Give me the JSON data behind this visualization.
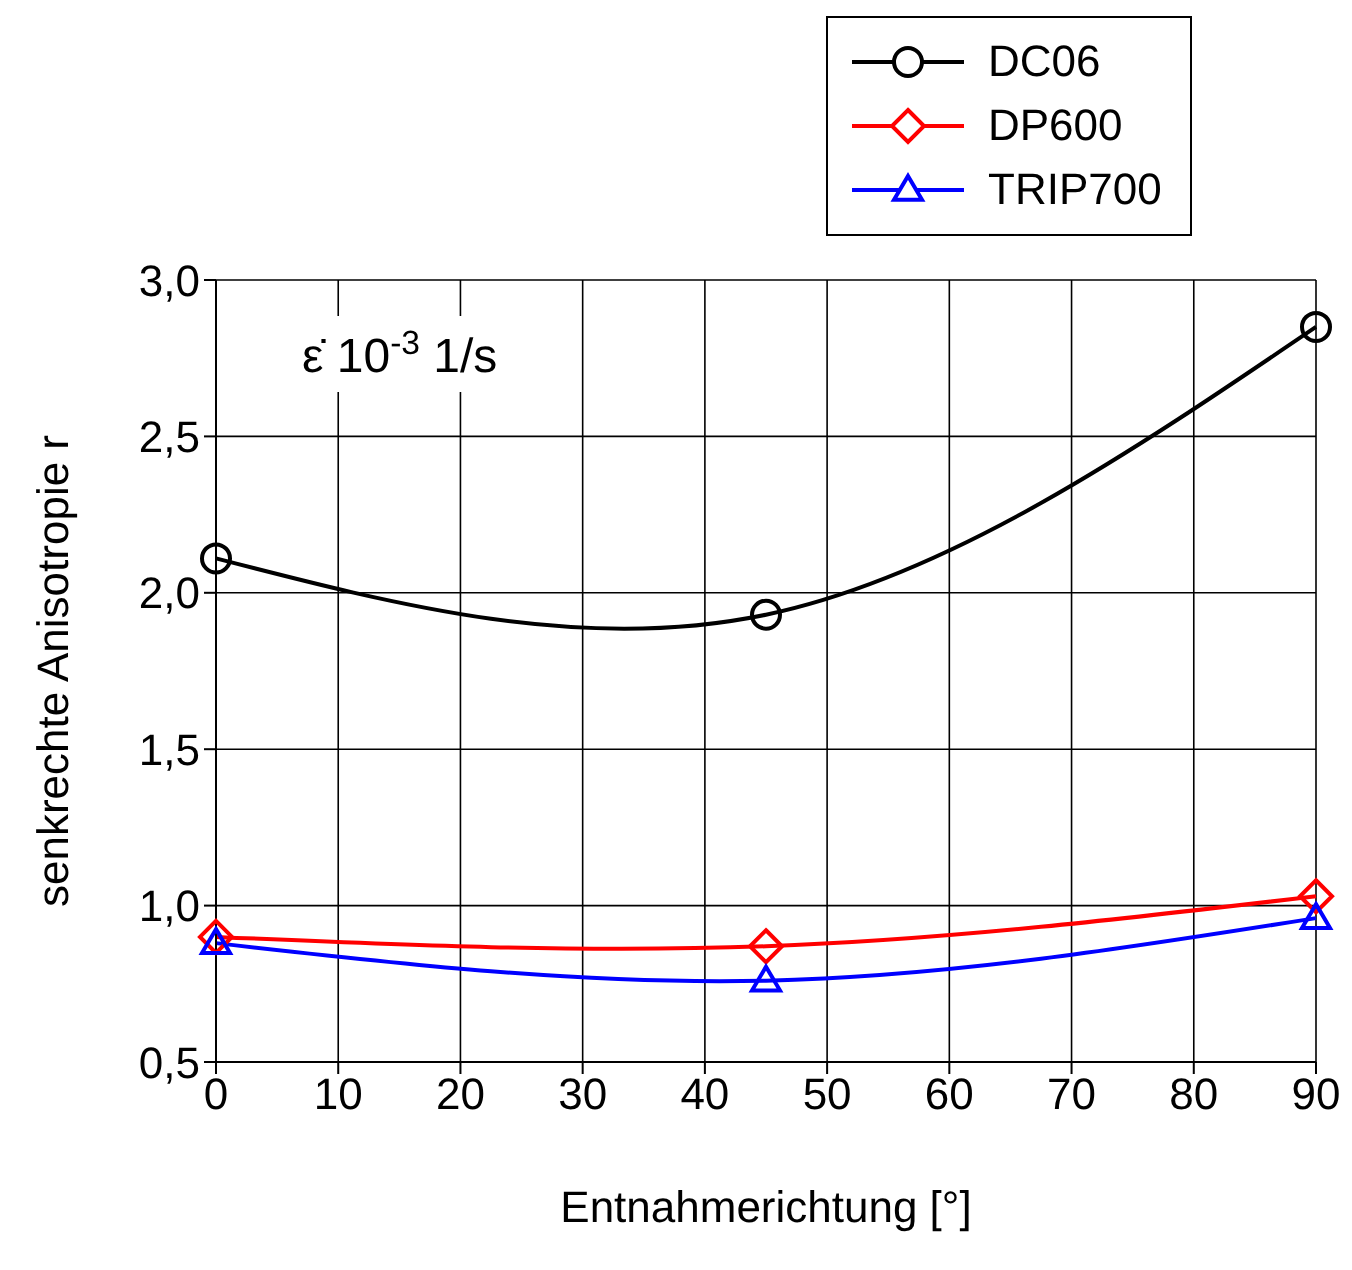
{
  "chart_data": {
    "type": "line",
    "xlabel": "Entnahmerichtung [°]",
    "ylabel": "senkrechte Anisotropie r",
    "x": [
      0,
      45,
      90
    ],
    "series": [
      {
        "name": "DC06",
        "color": "#000000",
        "marker": "circle",
        "values": [
          2.11,
          1.93,
          2.85
        ]
      },
      {
        "name": "DP600",
        "color": "#ff0000",
        "marker": "diamond",
        "values": [
          0.9,
          0.87,
          1.03
        ]
      },
      {
        "name": "TRIP700",
        "color": "#0000ff",
        "marker": "triangle",
        "values": [
          0.88,
          0.76,
          0.96
        ]
      }
    ],
    "xlim": [
      0,
      90
    ],
    "xticks": [
      0,
      10,
      20,
      30,
      40,
      50,
      60,
      70,
      80,
      90
    ],
    "ylim": [
      0.5,
      3
    ],
    "yticks": [
      {
        "value": 0.5,
        "label": "0,5"
      },
      {
        "value": 1,
        "label": "1,0"
      },
      {
        "value": 1.5,
        "label": "1,5"
      },
      {
        "value": 2,
        "label": "2,0"
      },
      {
        "value": 2.5,
        "label": "2,5"
      },
      {
        "value": 3,
        "label": "3,0"
      }
    ],
    "grid": true,
    "legend": "top right",
    "annotations": [
      "ε̇ 10$^{-3}$ 1/s"
    ]
  }
}
